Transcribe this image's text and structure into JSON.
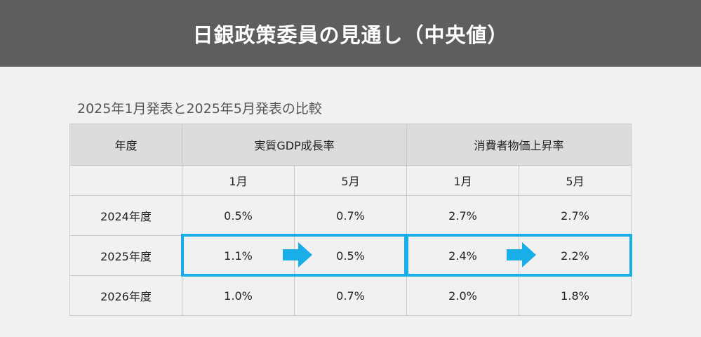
{
  "header": {
    "title": "日銀政策委員の見通し（中央値）"
  },
  "subtitle": "2025年1月発表と2025年5月発表の比較",
  "table": {
    "col_year": "年度",
    "group_gdp": "実質GDP成長率",
    "group_cpi": "消費者物価上昇率",
    "sub_jan": "1月",
    "sub_may": "5月",
    "rows": [
      {
        "year": "2024年度",
        "gdp_jan": "0.5%",
        "gdp_may": "0.7%",
        "cpi_jan": "2.7%",
        "cpi_may": "2.7%"
      },
      {
        "year": "2025年度",
        "gdp_jan": "1.1%",
        "gdp_may": "0.5%",
        "cpi_jan": "2.4%",
        "cpi_may": "2.2%"
      },
      {
        "year": "2026年度",
        "gdp_jan": "1.0%",
        "gdp_may": "0.7%",
        "cpi_jan": "2.0%",
        "cpi_may": "1.8%"
      }
    ]
  },
  "colors": {
    "header_bg": "#5e5e5e",
    "highlight": "#1aaee8",
    "arrow": "#1aaee8"
  },
  "icons": {
    "change_arrow": "right-arrow-icon"
  }
}
